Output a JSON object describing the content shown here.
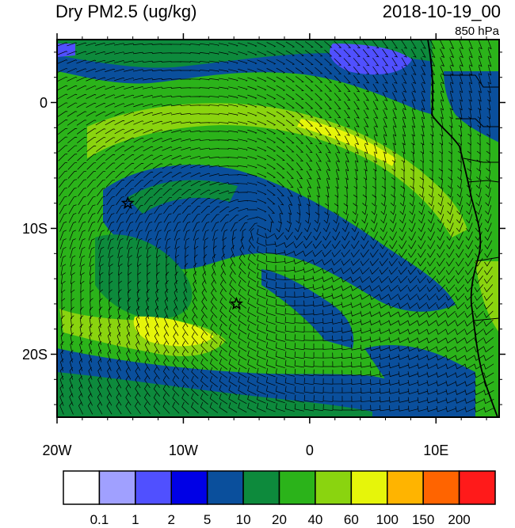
{
  "title_left": "Dry PM2.5 (ug/kg)",
  "title_right": "2018-10-19_00",
  "subtitle": "850 hPa",
  "x_ticks": [
    {
      "label": "20W",
      "lon": -20
    },
    {
      "label": "10W",
      "lon": -10
    },
    {
      "label": "0",
      "lon": 0
    },
    {
      "label": "10E",
      "lon": 10
    }
  ],
  "y_ticks": [
    {
      "label": "0",
      "lat": 0
    },
    {
      "label": "10S",
      "lat": -10
    },
    {
      "label": "20S",
      "lat": -20
    }
  ],
  "colorbar": {
    "colors": [
      "#ffffff",
      "#a0a0ff",
      "#5050ff",
      "#0000e6",
      "#0a4f9c",
      "#0d8a3c",
      "#2bb31a",
      "#8ad40f",
      "#e6f50a",
      "#ffb400",
      "#ff6400",
      "#ff1a1a"
    ],
    "labels": [
      "0.1",
      "1",
      "2",
      "5",
      "10",
      "20",
      "40",
      "60",
      "100",
      "150",
      "200"
    ]
  },
  "markers": [
    {
      "name": "star-marker-1",
      "lon": -14.4,
      "lat": -8.0
    },
    {
      "name": "star-marker-2",
      "lon": -5.8,
      "lat": -16.0
    }
  ]
}
